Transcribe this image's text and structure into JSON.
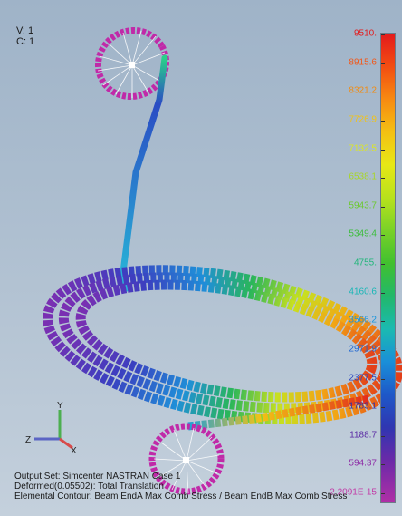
{
  "view_info": {
    "viewport": "V: 1",
    "case": "C: 1"
  },
  "output_info": {
    "output_set": "Output Set: Simcenter NASTRAN Case 1",
    "deformed": "Deformed(0.05502): Total Translation",
    "contour": "Elemental Contour: Beam EndA Max Comb Stress / Beam EndB Max Comb Stress"
  },
  "legend": {
    "labels": [
      "9510.",
      "8915.6",
      "8321.2",
      "7726.9",
      "7132.5",
      "6538.1",
      "5943.7",
      "5349.4",
      "4755.",
      "4160.6",
      "3566.2",
      "2971.9",
      "2377.5",
      "1783.1",
      "1188.7",
      "594.37",
      "2.2091E-15"
    ],
    "label_colors": [
      "#e41a1c",
      "#f2581a",
      "#f08c14",
      "#f2c316",
      "#dde624",
      "#a8d626",
      "#6bc92c",
      "#3cbd3c",
      "#20b67a",
      "#19b6b6",
      "#1a95dc",
      "#1f66d2",
      "#2a45bf",
      "#2f34a8",
      "#5a2aa4",
      "#8d2ca6",
      "#c23aa6"
    ]
  },
  "triad": {
    "x": "X",
    "y": "Y",
    "z": "Z"
  },
  "colors": {
    "background_top": "#9fb3c8",
    "background_bottom": "#c4d0dc"
  }
}
